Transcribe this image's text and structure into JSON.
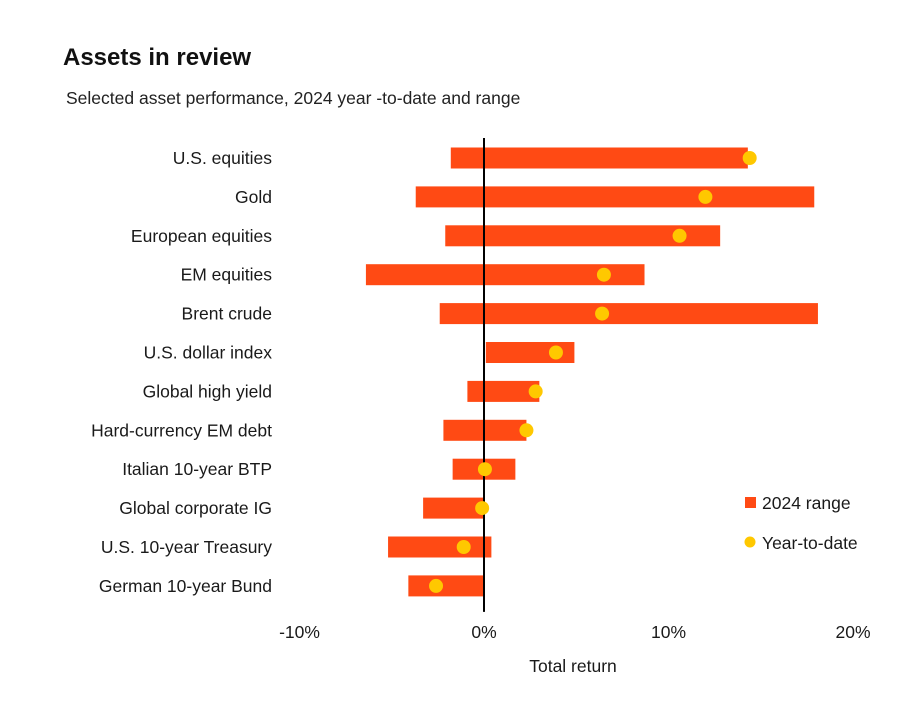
{
  "chart_data": {
    "type": "bar",
    "subtype": "floating-range-with-dot",
    "title": "Assets in review",
    "subtitle": "Selected asset performance, 2024 year -to-date and range",
    "xlabel": "Total return",
    "ylabel": "",
    "xlim": [
      -10,
      20
    ],
    "xticks": [
      -10,
      0,
      10,
      20
    ],
    "xtick_labels": [
      "-10%",
      "0%",
      "10%",
      "20%"
    ],
    "grid": false,
    "legend": {
      "placement": "bottom-right",
      "entries": [
        {
          "label": "2024 range",
          "marker": "square",
          "color": "#ff4a14"
        },
        {
          "label": "Year-to-date",
          "marker": "circle",
          "color": "#ffc800"
        }
      ]
    },
    "colors": {
      "range": "#ff4a14",
      "ytd": "#ffc800",
      "zero_line": "#000000"
    },
    "categories": [
      "U.S. equities",
      "Gold",
      "European equities",
      "EM equities",
      "Brent crude",
      "U.S. dollar index",
      "Global high yield",
      "Hard-currency EM debt",
      "Italian 10-year BTP",
      "Global corporate IG",
      "U.S. 10-year Treasury",
      "German 10-year Bund"
    ],
    "series": [
      {
        "name": "2024 range low",
        "values": [
          -1.8,
          -3.7,
          -2.1,
          -6.4,
          -2.4,
          0.1,
          -0.9,
          -2.2,
          -1.7,
          -3.3,
          -5.2,
          -4.1
        ]
      },
      {
        "name": "2024 range high",
        "values": [
          14.3,
          17.9,
          12.8,
          8.7,
          18.1,
          4.9,
          3.0,
          2.3,
          1.7,
          0.0,
          0.4,
          0.0
        ]
      },
      {
        "name": "Year-to-date",
        "values": [
          14.4,
          12.0,
          10.6,
          6.5,
          6.4,
          3.9,
          2.8,
          2.3,
          0.05,
          -0.1,
          -1.1,
          -2.6
        ]
      }
    ]
  }
}
